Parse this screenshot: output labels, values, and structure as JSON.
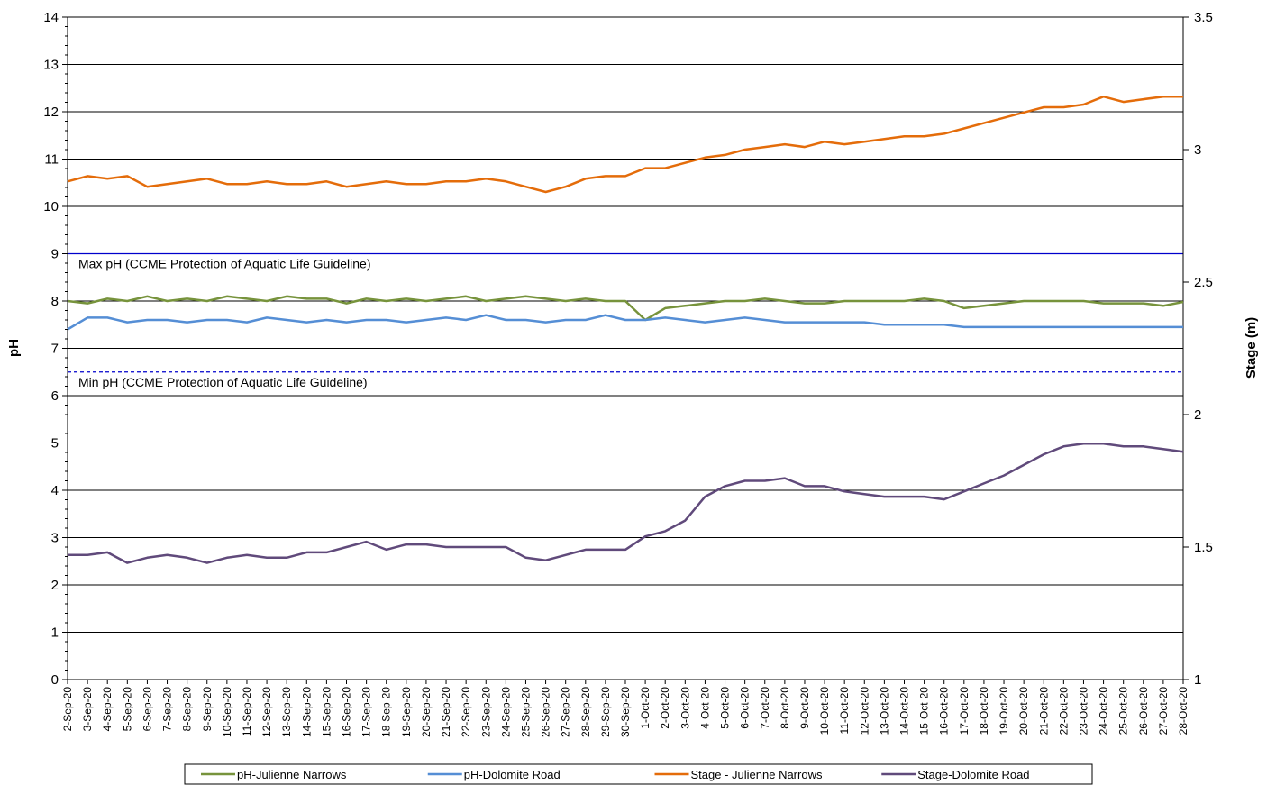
{
  "chart_data": {
    "type": "line",
    "ylabel": "pH",
    "y2label": "Stage (m)",
    "x": [
      "2-Sep-20",
      "3-Sep-20",
      "4-Sep-20",
      "5-Sep-20",
      "6-Sep-20",
      "7-Sep-20",
      "8-Sep-20",
      "9-Sep-20",
      "10-Sep-20",
      "11-Sep-20",
      "12-Sep-20",
      "13-Sep-20",
      "14-Sep-20",
      "15-Sep-20",
      "16-Sep-20",
      "17-Sep-20",
      "18-Sep-20",
      "19-Sep-20",
      "20-Sep-20",
      "21-Sep-20",
      "22-Sep-20",
      "23-Sep-20",
      "24-Sep-20",
      "25-Sep-20",
      "26-Sep-20",
      "27-Sep-20",
      "28-Sep-20",
      "29-Sep-20",
      "30-Sep-20",
      "1-Oct-20",
      "2-Oct-20",
      "3-Oct-20",
      "4-Oct-20",
      "5-Oct-20",
      "6-Oct-20",
      "7-Oct-20",
      "8-Oct-20",
      "9-Oct-20",
      "10-Oct-20",
      "11-Oct-20",
      "12-Oct-20",
      "13-Oct-20",
      "14-Oct-20",
      "15-Oct-20",
      "16-Oct-20",
      "17-Oct-20",
      "18-Oct-20",
      "19-Oct-20",
      "20-Oct-20",
      "21-Oct-20",
      "22-Oct-20",
      "23-Oct-20",
      "24-Oct-20",
      "25-Oct-20",
      "26-Oct-20",
      "27-Oct-20",
      "28-Oct-20"
    ],
    "ylim": [
      0,
      14
    ],
    "yticks": [
      0,
      1,
      2,
      3,
      4,
      5,
      6,
      7,
      8,
      9,
      10,
      11,
      12,
      13,
      14
    ],
    "y2lim": [
      1,
      3.5
    ],
    "y2ticks": [
      1,
      1.5,
      2,
      2.5,
      3,
      3.5
    ],
    "grid": true,
    "legend": "bottom",
    "series": [
      {
        "name": "pH-Julienne Narrows",
        "color": "#77933c",
        "values": [
          8.0,
          7.95,
          8.05,
          8.0,
          8.1,
          8.0,
          8.05,
          8.0,
          8.1,
          8.05,
          8.0,
          8.1,
          8.05,
          8.05,
          7.95,
          8.05,
          8.0,
          8.05,
          8.0,
          8.05,
          8.1,
          8.0,
          8.05,
          8.1,
          8.05,
          8.0,
          8.05,
          8.0,
          8.0,
          7.6,
          7.85,
          7.9,
          7.95,
          8.0,
          8.0,
          8.05,
          8.0,
          7.95,
          7.95,
          8.0,
          8.0,
          8.0,
          8.0,
          8.05,
          8.0,
          7.85,
          7.9,
          7.95,
          8.0,
          8.0,
          8.0,
          8.0,
          7.95,
          7.95,
          7.95,
          7.9,
          7.98
        ]
      },
      {
        "name": "pH-Dolomite Road",
        "color": "#558ed5",
        "values": [
          7.4,
          7.65,
          7.65,
          7.55,
          7.6,
          7.6,
          7.55,
          7.6,
          7.6,
          7.55,
          7.65,
          7.6,
          7.55,
          7.6,
          7.55,
          7.6,
          7.6,
          7.55,
          7.6,
          7.65,
          7.6,
          7.7,
          7.6,
          7.6,
          7.55,
          7.6,
          7.6,
          7.7,
          7.6,
          7.6,
          7.65,
          7.6,
          7.55,
          7.6,
          7.65,
          7.6,
          7.55,
          7.55,
          7.55,
          7.55,
          7.55,
          7.5,
          7.5,
          7.5,
          7.5,
          7.45,
          7.45,
          7.45,
          7.45,
          7.45,
          7.45,
          7.45,
          7.45,
          7.45,
          7.45,
          7.45,
          7.45
        ]
      },
      {
        "name": "Stage - Julienne Narrows",
        "color": "#e46c0a",
        "axis": "y2",
        "values": [
          2.88,
          2.9,
          2.89,
          2.9,
          2.86,
          2.87,
          2.88,
          2.89,
          2.87,
          2.87,
          2.88,
          2.87,
          2.87,
          2.88,
          2.86,
          2.87,
          2.88,
          2.87,
          2.87,
          2.88,
          2.88,
          2.89,
          2.88,
          2.86,
          2.84,
          2.86,
          2.89,
          2.9,
          2.9,
          2.93,
          2.93,
          2.95,
          2.97,
          2.98,
          3.0,
          3.01,
          3.02,
          3.01,
          3.03,
          3.02,
          3.03,
          3.04,
          3.05,
          3.05,
          3.06,
          3.08,
          3.1,
          3.12,
          3.14,
          3.16,
          3.16,
          3.17,
          3.2,
          3.18,
          3.19,
          3.2,
          3.2
        ]
      },
      {
        "name": "Stage-Dolomite Road",
        "color": "#604a7b",
        "axis": "y2",
        "values": [
          1.47,
          1.47,
          1.48,
          1.44,
          1.46,
          1.47,
          1.46,
          1.44,
          1.46,
          1.47,
          1.46,
          1.46,
          1.48,
          1.48,
          1.5,
          1.52,
          1.49,
          1.51,
          1.51,
          1.5,
          1.5,
          1.5,
          1.5,
          1.46,
          1.45,
          1.47,
          1.49,
          1.49,
          1.49,
          1.54,
          1.56,
          1.6,
          1.69,
          1.73,
          1.75,
          1.75,
          1.76,
          1.73,
          1.73,
          1.71,
          1.7,
          1.69,
          1.69,
          1.69,
          1.68,
          1.71,
          1.74,
          1.77,
          1.81,
          1.85,
          1.88,
          1.89,
          1.89,
          1.88,
          1.88,
          1.87,
          1.86
        ]
      }
    ],
    "guidelines": [
      {
        "value": 9,
        "label": "Max pH (CCME Protection of Aquatic Life Guideline)",
        "color": "#0000cc",
        "style": "solid"
      },
      {
        "value": 6.5,
        "label": "Min pH (CCME Protection of Aquatic Life Guideline)",
        "color": "#0000cc",
        "style": "dashed"
      }
    ]
  }
}
